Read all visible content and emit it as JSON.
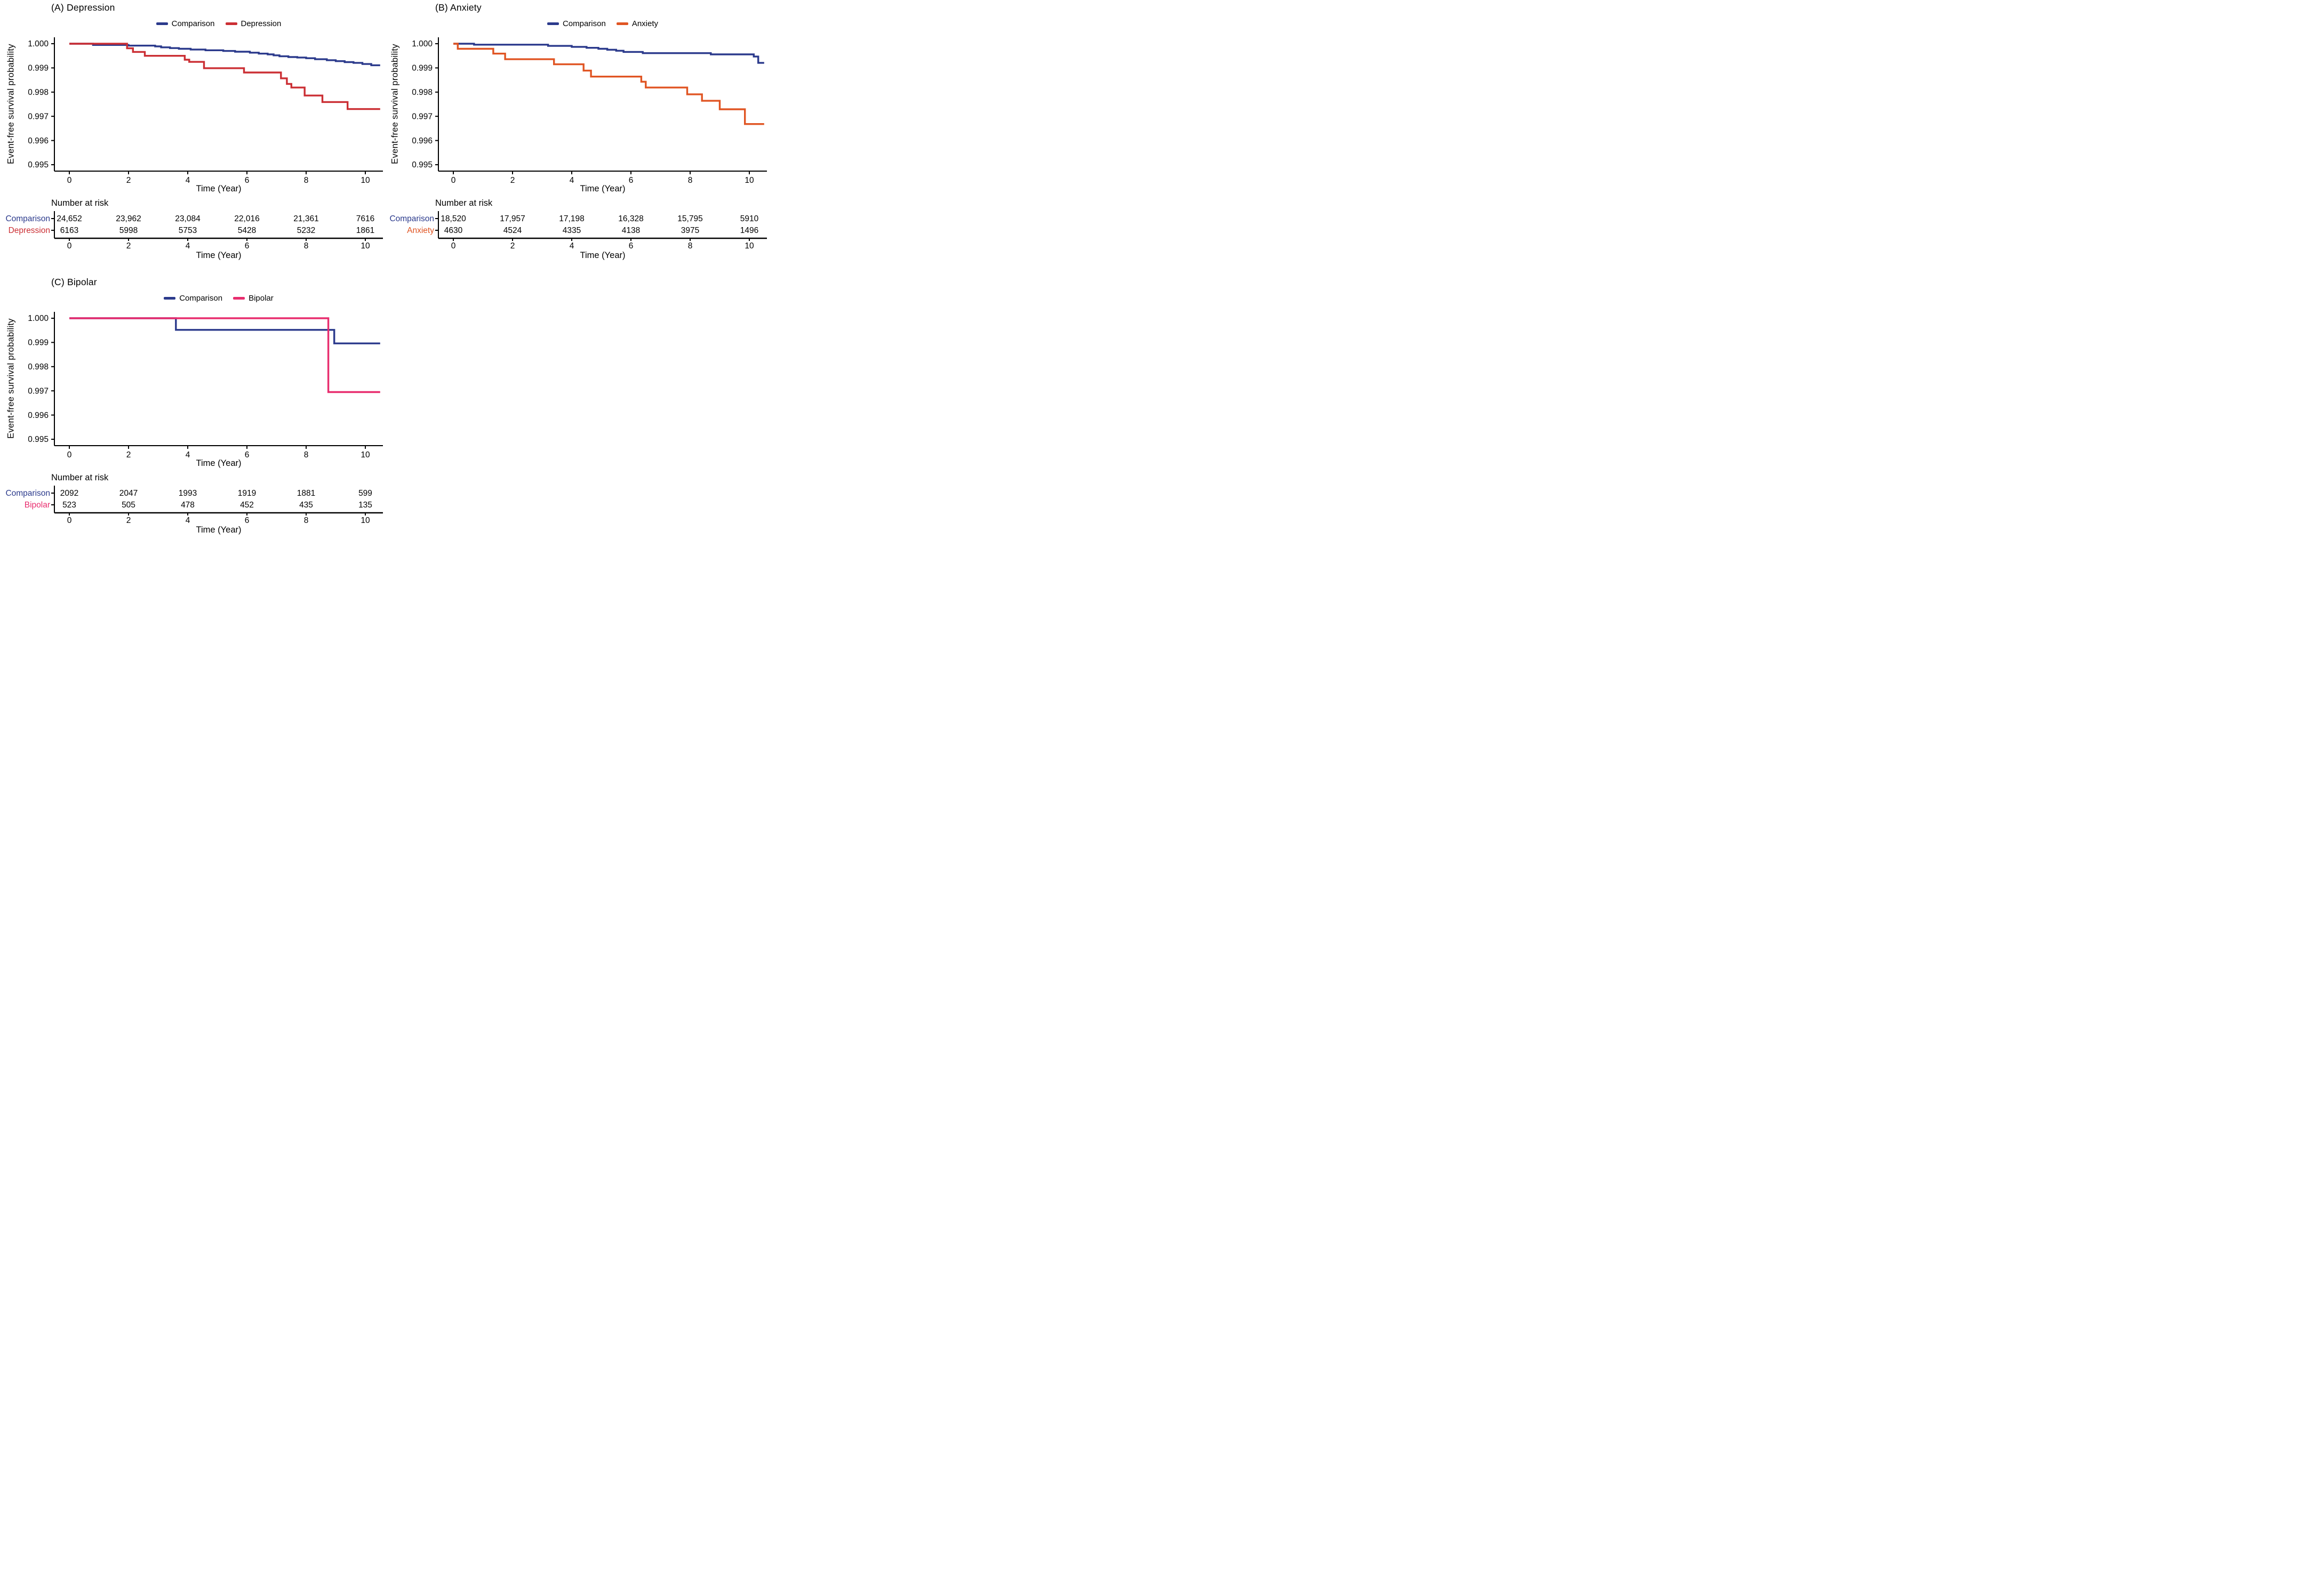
{
  "figure": {
    "background": "#ffffff",
    "text_color": "#000000",
    "comparison_color": "#2B3A8C",
    "depression_color": "#CB2F34",
    "anxiety_color": "#E05523",
    "bipolar_color": "#E82D6E"
  },
  "chart_data": [
    {
      "type": "line",
      "step": true,
      "panel": "A",
      "title": "(A) Depression",
      "xlabel": "Time (Year)",
      "ylabel": "Event-free survival probability",
      "legend_position": "top",
      "grid": false,
      "xlim": [
        0,
        10.5
      ],
      "ylim": [
        0.995,
        1.0
      ],
      "xticks": [
        "0",
        "2",
        "4",
        "6",
        "8",
        "10"
      ],
      "xtick_values": [
        0,
        2,
        4,
        6,
        8,
        10
      ],
      "yticks": [
        "1.000",
        "0.999",
        "0.998",
        "0.997",
        "0.996",
        "0.995"
      ],
      "ytick_values": [
        1.0,
        0.999,
        0.998,
        0.997,
        0.996,
        0.995
      ],
      "series": [
        {
          "name": "Comparison",
          "color": "#2B3A8C",
          "steps": [
            [
              0,
              1.0
            ],
            [
              0.8,
              0.99995
            ],
            [
              2.0,
              0.99992
            ],
            [
              2.9,
              0.99989
            ],
            [
              3.1,
              0.99985
            ],
            [
              3.4,
              0.99982
            ],
            [
              3.7,
              0.99979
            ],
            [
              4.1,
              0.99976
            ],
            [
              4.6,
              0.99973
            ],
            [
              5.2,
              0.9997
            ],
            [
              5.6,
              0.99967
            ],
            [
              6.1,
              0.99963
            ],
            [
              6.4,
              0.99959
            ],
            [
              6.7,
              0.99956
            ],
            [
              6.9,
              0.99952
            ],
            [
              7.1,
              0.99948
            ],
            [
              7.4,
              0.99945
            ],
            [
              7.7,
              0.99943
            ],
            [
              8.0,
              0.9994
            ],
            [
              8.3,
              0.99936
            ],
            [
              8.7,
              0.99932
            ],
            [
              9.0,
              0.99928
            ],
            [
              9.3,
              0.99924
            ],
            [
              9.6,
              0.99921
            ],
            [
              9.9,
              0.99916
            ],
            [
              10.2,
              0.99911
            ]
          ]
        },
        {
          "name": "Depression",
          "color": "#CB2F34",
          "steps": [
            [
              0,
              1.0
            ],
            [
              1.95,
              0.99981
            ],
            [
              2.15,
              0.99966
            ],
            [
              2.55,
              0.9995
            ],
            [
              3.9,
              0.99934
            ],
            [
              4.05,
              0.99925
            ],
            [
              4.55,
              0.99899
            ],
            [
              5.9,
              0.99881
            ],
            [
              7.15,
              0.99857
            ],
            [
              7.35,
              0.99834
            ],
            [
              7.5,
              0.99819
            ],
            [
              7.95,
              0.99786
            ],
            [
              8.55,
              0.99759
            ],
            [
              9.4,
              0.9973
            ]
          ]
        }
      ],
      "risk_table": {
        "title": "Number at risk",
        "times": [
          0,
          2,
          4,
          6,
          8,
          10
        ],
        "rows": [
          {
            "label": "Comparison",
            "color": "#2B3A8C",
            "values": [
              "24,652",
              "23,962",
              "23,084",
              "22,016",
              "21,361",
              "7616"
            ]
          },
          {
            "label": "Depression",
            "color": "#CB2F34",
            "values": [
              "6163",
              "5998",
              "5753",
              "5428",
              "5232",
              "1861"
            ]
          }
        ]
      }
    },
    {
      "type": "line",
      "step": true,
      "panel": "B",
      "title": "(B) Anxiety",
      "xlabel": "Time (Year)",
      "ylabel": "Event-free survival probability",
      "legend_position": "top",
      "grid": false,
      "xlim": [
        0,
        10.5
      ],
      "ylim": [
        0.995,
        1.0
      ],
      "xticks": [
        "0",
        "2",
        "4",
        "6",
        "8",
        "10"
      ],
      "xtick_values": [
        0,
        2,
        4,
        6,
        8,
        10
      ],
      "yticks": [
        "1.000",
        "0.999",
        "0.998",
        "0.997",
        "0.996",
        "0.995"
      ],
      "ytick_values": [
        1.0,
        0.999,
        0.998,
        0.997,
        0.996,
        0.995
      ],
      "series": [
        {
          "name": "Comparison",
          "color": "#2B3A8C",
          "steps": [
            [
              0,
              1.0
            ],
            [
              0.7,
              0.99996
            ],
            [
              3.2,
              0.99991
            ],
            [
              4.0,
              0.99987
            ],
            [
              4.5,
              0.99983
            ],
            [
              4.9,
              0.99979
            ],
            [
              5.2,
              0.99975
            ],
            [
              5.5,
              0.99971
            ],
            [
              5.75,
              0.99966
            ],
            [
              6.4,
              0.99961
            ],
            [
              8.7,
              0.99956
            ],
            [
              10.15,
              0.99947
            ],
            [
              10.3,
              0.99921
            ]
          ]
        },
        {
          "name": "Anxiety",
          "color": "#E05523",
          "steps": [
            [
              0,
              1.0
            ],
            [
              0.15,
              0.99979
            ],
            [
              1.35,
              0.99959
            ],
            [
              1.75,
              0.99936
            ],
            [
              3.4,
              0.99915
            ],
            [
              4.4,
              0.99889
            ],
            [
              4.65,
              0.99864
            ],
            [
              6.35,
              0.99843
            ],
            [
              6.5,
              0.99819
            ],
            [
              7.9,
              0.99791
            ],
            [
              8.4,
              0.99764
            ],
            [
              9.0,
              0.99729
            ],
            [
              9.85,
              0.99668
            ]
          ]
        }
      ],
      "risk_table": {
        "title": "Number at risk",
        "times": [
          0,
          2,
          4,
          6,
          8,
          10
        ],
        "rows": [
          {
            "label": "Comparison",
            "color": "#2B3A8C",
            "values": [
              "18,520",
              "17,957",
              "17,198",
              "16,328",
              "15,795",
              "5910"
            ]
          },
          {
            "label": "Anxiety",
            "color": "#E05523",
            "values": [
              "4630",
              "4524",
              "4335",
              "4138",
              "3975",
              "1496"
            ]
          }
        ]
      }
    },
    {
      "type": "line",
      "step": true,
      "panel": "C",
      "title": "(C) Bipolar",
      "xlabel": "Time (Year)",
      "ylabel": "Event-free survival probability",
      "legend_position": "top",
      "grid": false,
      "xlim": [
        0,
        10.5
      ],
      "ylim": [
        0.995,
        1.0
      ],
      "xticks": [
        "0",
        "2",
        "4",
        "6",
        "8",
        "10"
      ],
      "xtick_values": [
        0,
        2,
        4,
        6,
        8,
        10
      ],
      "yticks": [
        "1.000",
        "0.999",
        "0.998",
        "0.997",
        "0.996",
        "0.995"
      ],
      "ytick_values": [
        1.0,
        0.999,
        0.998,
        0.997,
        0.996,
        0.995
      ],
      "series": [
        {
          "name": "Comparison",
          "color": "#2B3A8C",
          "steps": [
            [
              0,
              1.0
            ],
            [
              3.6,
              0.99952
            ],
            [
              8.95,
              0.99896
            ]
          ]
        },
        {
          "name": "Bipolar",
          "color": "#E82D6E",
          "steps": [
            [
              0,
              1.0
            ],
            [
              8.75,
              0.99695
            ]
          ]
        }
      ],
      "risk_table": {
        "title": "Number at risk",
        "times": [
          0,
          2,
          4,
          6,
          8,
          10
        ],
        "rows": [
          {
            "label": "Comparison",
            "color": "#2B3A8C",
            "values": [
              "2092",
              "2047",
              "1993",
              "1919",
              "1881",
              "599"
            ]
          },
          {
            "label": "Bipolar",
            "color": "#E82D6E",
            "values": [
              "523",
              "505",
              "478",
              "452",
              "435",
              "135"
            ]
          }
        ]
      }
    }
  ]
}
